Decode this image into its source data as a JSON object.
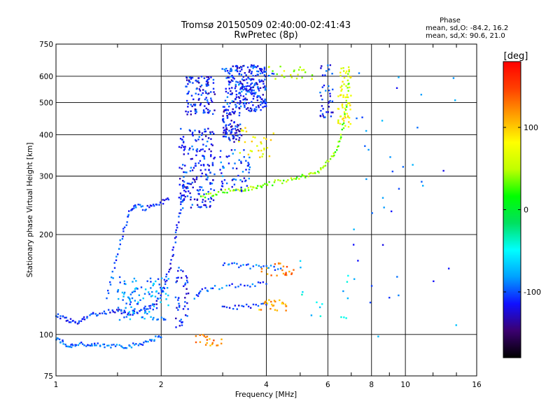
{
  "chart_data": {
    "type": "scatter",
    "title": "Tromsø 20150509 02:40:00-02:41:43",
    "subtitle": "RwPretec (8p)",
    "xlabel": "Frequency [MHz]",
    "ylabel": "Stationary phase Virtual Height [km]",
    "x_scale": "log",
    "y_scale": "log",
    "xlim": [
      1,
      16
    ],
    "ylim": [
      75,
      750
    ],
    "x_ticks": [
      1,
      2,
      4,
      6,
      8,
      10,
      16
    ],
    "x_minor_ticks": [
      1.5,
      3,
      5,
      7,
      9,
      12,
      14
    ],
    "y_ticks": [
      75,
      100,
      200,
      300,
      400,
      500,
      600,
      750
    ],
    "grid": true,
    "phase_info": {
      "heading": "Phase",
      "line1": "mean, sd,O: -84.2, 16.2",
      "line2": "mean, sd,X:  90.6, 21.0"
    },
    "colorbar": {
      "label": "[deg]",
      "range": [
        -180,
        180
      ],
      "ticks": [
        100,
        0,
        -100
      ],
      "colormap": [
        "#000000",
        "#3b0070",
        "#1010ff",
        "#00a0ff",
        "#00ffff",
        "#00e060",
        "#00ff00",
        "#c0ff00",
        "#ffff00",
        "#ffa000",
        "#ff4000",
        "#ff0000"
      ]
    },
    "traces": [
      {
        "points": [
          [
            1.0,
            97
          ],
          [
            1.04,
            95
          ],
          [
            1.08,
            92
          ],
          [
            1.12,
            93
          ],
          [
            1.18,
            94
          ],
          [
            1.25,
            92
          ],
          [
            1.32,
            93
          ],
          [
            1.4,
            92
          ],
          [
            1.5,
            93
          ],
          [
            1.6,
            92
          ],
          [
            1.7,
            93
          ],
          [
            1.8,
            95
          ],
          [
            1.9,
            97
          ],
          [
            2.0,
            98
          ]
        ],
        "phase": -95
      },
      {
        "points": [
          [
            1.0,
            115
          ],
          [
            1.05,
            112
          ],
          [
            1.1,
            110
          ],
          [
            1.15,
            108
          ],
          [
            1.2,
            112
          ],
          [
            1.27,
            115
          ],
          [
            1.35,
            116
          ],
          [
            1.45,
            118
          ],
          [
            1.55,
            117
          ],
          [
            1.65,
            116
          ],
          [
            1.75,
            118
          ],
          [
            1.85,
            120
          ],
          [
            1.95,
            125
          ],
          [
            2.05,
            140
          ],
          [
            2.12,
            160
          ],
          [
            2.18,
            185
          ],
          [
            2.22,
            210
          ],
          [
            2.27,
            240
          ],
          [
            2.32,
            265
          ],
          [
            2.4,
            285
          ]
        ],
        "phase": -110
      },
      {
        "points": [
          [
            1.4,
            130
          ],
          [
            1.45,
            150
          ],
          [
            1.5,
            175
          ],
          [
            1.55,
            200
          ],
          [
            1.6,
            225
          ],
          [
            1.65,
            240
          ],
          [
            1.7,
            245
          ],
          [
            1.8,
            240
          ],
          [
            1.9,
            245
          ],
          [
            2.0,
            250
          ],
          [
            2.1,
            255
          ]
        ],
        "phase": -105
      },
      {
        "points": [
          [
            2.6,
            260
          ],
          [
            2.8,
            265
          ],
          [
            3.0,
            270
          ],
          [
            3.2,
            272
          ],
          [
            3.4,
            273
          ],
          [
            3.6,
            275
          ],
          [
            3.8,
            278
          ],
          [
            4.0,
            283
          ],
          [
            4.3,
            288
          ],
          [
            4.7,
            292
          ],
          [
            5.0,
            298
          ],
          [
            5.3,
            303
          ],
          [
            5.6,
            310
          ],
          [
            5.9,
            322
          ],
          [
            6.2,
            345
          ],
          [
            6.4,
            370
          ],
          [
            6.6,
            410
          ],
          [
            6.75,
            470
          ],
          [
            6.85,
            550
          ],
          [
            6.9,
            620
          ]
        ],
        "phase": 40
      },
      {
        "points": [
          [
            3.0,
            480
          ],
          [
            3.3,
            520
          ],
          [
            3.6,
            560
          ],
          [
            3.9,
            590
          ],
          [
            4.2,
            610
          ]
        ],
        "phase": -100
      },
      {
        "points": [
          [
            3.0,
            640
          ],
          [
            3.2,
            600
          ],
          [
            3.4,
            560
          ],
          [
            3.6,
            540
          ],
          [
            3.8,
            520
          ],
          [
            4.0,
            500
          ]
        ],
        "phase": -100
      },
      {
        "points": [
          [
            2.5,
            130
          ],
          [
            2.6,
            135
          ],
          [
            2.8,
            138
          ],
          [
            3.2,
            140
          ],
          [
            3.6,
            141
          ],
          [
            4.0,
            142
          ]
        ],
        "phase": -100
      },
      {
        "points": [
          [
            3.0,
            120
          ],
          [
            3.3,
            121
          ],
          [
            3.6,
            122
          ],
          [
            4.0,
            123
          ]
        ],
        "phase": -110
      },
      {
        "points": [
          [
            3.0,
            162
          ],
          [
            3.3,
            162
          ],
          [
            3.6,
            160
          ],
          [
            4.0,
            160
          ],
          [
            4.4,
            158
          ]
        ],
        "phase": -95
      }
    ],
    "clusters": [
      {
        "x": [
          2.25,
          2.85
        ],
        "y": [
          240,
          420
        ],
        "n": 190,
        "phase": -110
      },
      {
        "x": [
          2.35,
          2.85
        ],
        "y": [
          460,
          600
        ],
        "n": 110,
        "phase": -115
      },
      {
        "x": [
          3.05,
          4.0
        ],
        "y": [
          470,
          650
        ],
        "n": 220,
        "phase": -110
      },
      {
        "x": [
          3.0,
          3.4
        ],
        "y": [
          380,
          480
        ],
        "n": 90,
        "phase": -120
      },
      {
        "x": [
          2.9,
          3.6
        ],
        "y": [
          270,
          360
        ],
        "n": 60,
        "phase": -105
      },
      {
        "x": [
          3.3,
          4.2
        ],
        "y": [
          340,
          420
        ],
        "n": 30,
        "phase": 80
      },
      {
        "x": [
          6.4,
          7.0
        ],
        "y": [
          420,
          640
        ],
        "n": 60,
        "phase": 75
      },
      {
        "x": [
          4.0,
          5.5
        ],
        "y": [
          580,
          650
        ],
        "n": 24,
        "phase": 55
      },
      {
        "x": [
          5.7,
          6.2
        ],
        "y": [
          450,
          650
        ],
        "n": 40,
        "phase": -110
      },
      {
        "x": [
          1.5,
          2.1
        ],
        "y": [
          110,
          150
        ],
        "n": 120,
        "phase": -85
      },
      {
        "x": [
          2.2,
          2.4
        ],
        "y": [
          105,
          160
        ],
        "n": 45,
        "phase": -110
      },
      {
        "x": [
          2.5,
          3.0
        ],
        "y": [
          92,
          100
        ],
        "n": 20,
        "phase": 120
      },
      {
        "x": [
          3.8,
          4.6
        ],
        "y": [
          118,
          128
        ],
        "n": 24,
        "phase": 110
      },
      {
        "x": [
          3.8,
          4.8
        ],
        "y": [
          150,
          165
        ],
        "n": 22,
        "phase": 130
      },
      {
        "x": [
          5.0,
          7.0
        ],
        "y": [
          110,
          170
        ],
        "n": 16,
        "phase": -60
      },
      {
        "x": [
          7.0,
          14.0
        ],
        "y": [
          80,
          650
        ],
        "n": 40,
        "phase": -95
      }
    ]
  }
}
